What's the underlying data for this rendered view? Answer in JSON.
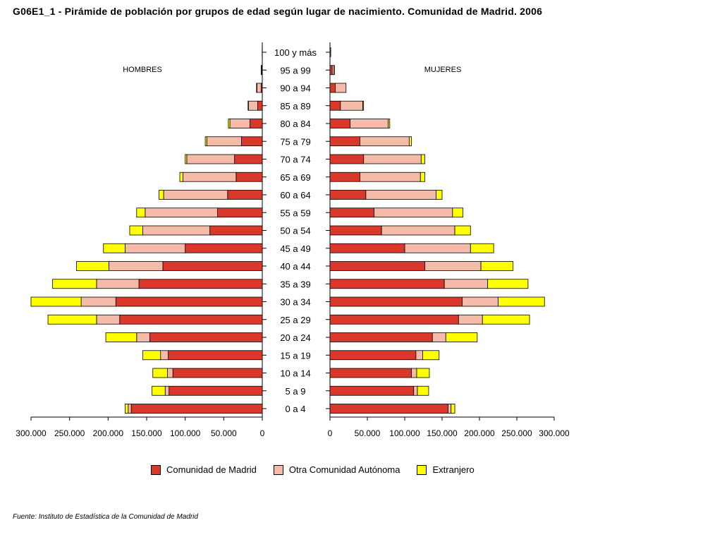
{
  "title": "G06E1_1 - Pirámide de población por grupos de edad según lugar de nacimiento. Comunidad de Madrid.  2006",
  "source": "Fuente: Instituto de Estadística de la Comunidad de Madrid",
  "colors": {
    "madrid": "#d9382b",
    "otra": "#f4bba8",
    "extranjero": "#ffff00",
    "border": "#000000"
  },
  "chart_data": {
    "type": "bar",
    "orientation": "horizontal-pyramid",
    "stacked": true,
    "title": "G06E1_1 - Pirámide de población por grupos de edad según lugar de nacimiento. Comunidad de Madrid.  2006",
    "left_label": "HOMBRES",
    "right_label": "MUJERES",
    "categories": [
      "100 y más",
      "95 a 99",
      "90 a 94",
      "85 a 89",
      "80 a 84",
      "75 a 79",
      "70 a 74",
      "65 a 69",
      "60 a 64",
      "55 a 59",
      "50 a 54",
      "45 a 49",
      "40 a  44",
      "35 a 39",
      "30 a 34",
      "25 a 29",
      "20 a 24",
      "15 a 19",
      "10 a 14",
      "5 a 9",
      "0 a 4"
    ],
    "series_names": [
      "Comunidad de Madrid",
      "Otra Comunidad Autónoma",
      "Extranjero"
    ],
    "hombres": [
      {
        "name": "Comunidad de Madrid",
        "values": [
          200,
          1000,
          1500,
          6000,
          16000,
          27000,
          36000,
          34000,
          45000,
          58000,
          68000,
          100000,
          129000,
          160000,
          190000,
          185000,
          146000,
          122000,
          116000,
          121000,
          170000
        ]
      },
      {
        "name": "Otra Comunidad Autónoma",
        "values": [
          0,
          300,
          5500,
          12000,
          26000,
          45000,
          62000,
          69000,
          83000,
          94000,
          87000,
          78000,
          70000,
          55000,
          45000,
          30000,
          17000,
          10000,
          7000,
          5000,
          4000
        ]
      },
      {
        "name": "Extranjero",
        "values": [
          0,
          100,
          500,
          500,
          2000,
          2000,
          2000,
          4000,
          6000,
          11000,
          17000,
          28000,
          42000,
          57000,
          65000,
          63000,
          40000,
          23000,
          19000,
          17000,
          4000
        ]
      }
    ],
    "mujeres": [
      {
        "name": "Comunidad de Madrid",
        "values": [
          1000,
          3000,
          7000,
          14000,
          27000,
          40000,
          45000,
          40000,
          48000,
          59000,
          69000,
          100000,
          127000,
          153000,
          177000,
          172000,
          137000,
          115000,
          109000,
          112000,
          158000
        ]
      },
      {
        "name": "Otra Comunidad Autónoma",
        "values": [
          0,
          2500,
          14500,
          30000,
          51000,
          66000,
          77000,
          81000,
          94000,
          105000,
          98000,
          88000,
          75000,
          58000,
          48000,
          32000,
          18000,
          9000,
          7000,
          5000,
          4000
        ]
      },
      {
        "name": "Extranjero",
        "values": [
          0,
          500,
          0,
          1000,
          2000,
          3000,
          5000,
          6000,
          8000,
          14000,
          21000,
          31000,
          43000,
          54000,
          62000,
          63000,
          42000,
          22000,
          17000,
          15000,
          5000
        ]
      }
    ],
    "x_ticks_left": [
      "300.000",
      "250.000",
      "200.000",
      "150.000",
      "100.000",
      "50.000",
      "0"
    ],
    "x_ticks_right": [
      "0",
      "50.000",
      "100.000",
      "150.000",
      "200.000",
      "250.000",
      "300.000"
    ],
    "xlim": [
      0,
      300000
    ],
    "legend_position": "bottom"
  }
}
